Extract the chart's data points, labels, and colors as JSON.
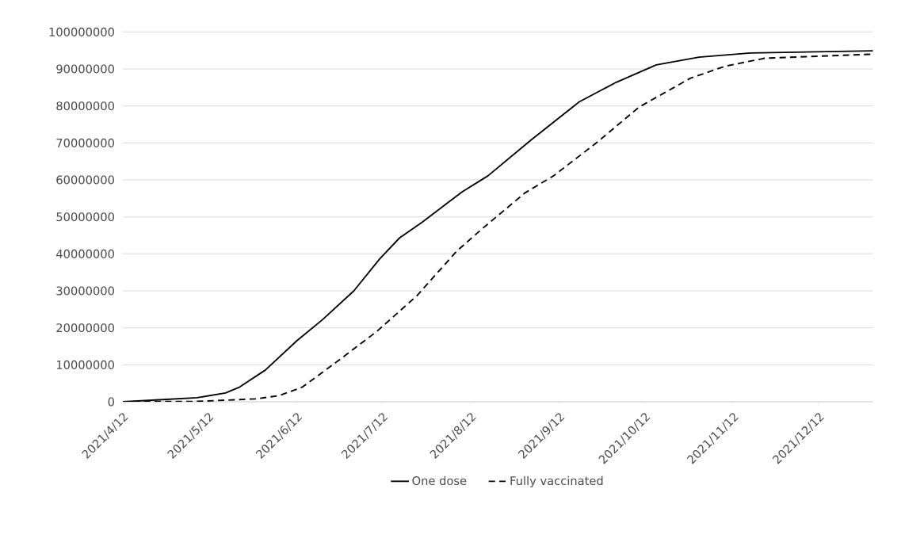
{
  "chart_data": {
    "type": "line",
    "xlim": [
      "2021-04-12",
      "2021-12-31"
    ],
    "xticks": [
      {
        "value": "2021-04-12",
        "label": "2021/4/12"
      },
      {
        "value": "2021-05-12",
        "label": "2021/5/12"
      },
      {
        "value": "2021-06-12",
        "label": "2021/6/12"
      },
      {
        "value": "2021-07-12",
        "label": "2021/7/12"
      },
      {
        "value": "2021-08-12",
        "label": "2021/8/12"
      },
      {
        "value": "2021-09-12",
        "label": "2021/9/12"
      },
      {
        "value": "2021-10-12",
        "label": "2021/10/12"
      },
      {
        "value": "2021-11-12",
        "label": "2021/11/12"
      },
      {
        "value": "2021-12-12",
        "label": "2021/12/12"
      }
    ],
    "ylim": [
      0,
      100000000
    ],
    "yticks": [
      0,
      10000000,
      20000000,
      30000000,
      40000000,
      50000000,
      60000000,
      70000000,
      80000000,
      90000000,
      100000000
    ],
    "grid": "y",
    "legend": "bottom",
    "marker": "none",
    "series": [
      {
        "name": "One dose",
        "color": "#000000",
        "line_style": "solid",
        "x": [
          "2021-04-12",
          "2021-04-26",
          "2021-05-08",
          "2021-05-18",
          "2021-05-23",
          "2021-06-01",
          "2021-06-12",
          "2021-06-21",
          "2021-07-02",
          "2021-07-11",
          "2021-07-18",
          "2021-07-26",
          "2021-08-09",
          "2021-08-18",
          "2021-09-02",
          "2021-09-19",
          "2021-10-02",
          "2021-10-16",
          "2021-10-31",
          "2021-11-18",
          "2021-12-31"
        ],
        "values": [
          0,
          600000,
          1100000,
          2400000,
          4000000,
          8600000,
          16500000,
          22200000,
          30000000,
          38600000,
          44300000,
          48600000,
          56800000,
          61100000,
          70700000,
          81100000,
          86400000,
          91100000,
          93200000,
          94300000,
          94900000
        ]
      },
      {
        "name": "Fully vaccinated",
        "color": "#000000",
        "line_style": "dashed",
        "x": [
          "2021-04-12",
          "2021-05-08",
          "2021-05-29",
          "2021-06-06",
          "2021-06-14",
          "2021-06-26",
          "2021-07-10",
          "2021-07-24",
          "2021-08-07",
          "2021-08-16",
          "2021-08-31",
          "2021-09-10",
          "2021-09-25",
          "2021-10-10",
          "2021-10-28",
          "2021-11-09",
          "2021-11-23",
          "2021-12-31"
        ],
        "values": [
          0,
          100000,
          800000,
          1700000,
          4000000,
          10800000,
          19000000,
          28600000,
          40700000,
          46800000,
          56500000,
          61100000,
          70000000,
          79700000,
          87500000,
          90700000,
          92900000,
          94000000
        ]
      }
    ]
  }
}
